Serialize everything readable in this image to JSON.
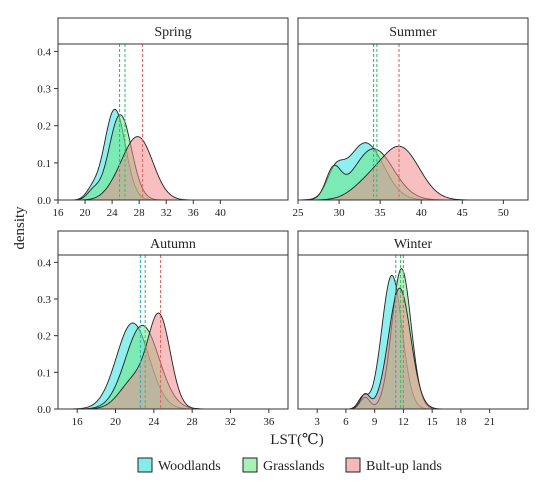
{
  "figure": {
    "ylabel": "density",
    "xlabel": "LST(℃)"
  },
  "legend": {
    "placement": "bottom",
    "items": [
      {
        "label": "Woodlands",
        "color": "#33e0e0"
      },
      {
        "label": "Grasslands",
        "color": "#6ee887"
      },
      {
        "label": "Bult-up lands",
        "color": "#f08a8a"
      }
    ]
  },
  "chart_data": [
    {
      "type": "area",
      "title": "Spring",
      "xlim": [
        16,
        50
      ],
      "ylim": [
        0,
        0.42
      ],
      "xticks": [
        16,
        20,
        24,
        28,
        32,
        36,
        40
      ],
      "yticks": [
        0.0,
        0.1,
        0.2,
        0.3,
        0.4
      ],
      "series": [
        {
          "name": "Woodlands",
          "components": [
            {
              "w": 0.05,
              "mu": 21.0,
              "sd": 0.9
            },
            {
              "w": 0.95,
              "mu": 24.4,
              "sd": 1.55
            }
          ],
          "mean": 25.1
        },
        {
          "name": "Grasslands",
          "components": [
            {
              "w": 0.05,
              "mu": 21.2,
              "sd": 0.9
            },
            {
              "w": 0.95,
              "mu": 25.2,
              "sd": 1.65
            }
          ],
          "mean": 25.9
        },
        {
          "name": "Bult-up lands",
          "components": [
            {
              "w": 0.15,
              "mu": 25.0,
              "sd": 1.8
            },
            {
              "w": 0.85,
              "mu": 28.0,
              "sd": 2.1
            }
          ],
          "mean": 28.5
        }
      ]
    },
    {
      "type": "area",
      "title": "Summer",
      "xlim": [
        25,
        53
      ],
      "ylim": [
        0,
        0.42
      ],
      "xticks": [
        25,
        30,
        35,
        40,
        45,
        50
      ],
      "yticks": [
        0.0,
        0.1,
        0.2,
        0.3,
        0.4
      ],
      "series": [
        {
          "name": "Woodlands",
          "components": [
            {
              "w": 0.15,
              "mu": 29.5,
              "sd": 1.0
            },
            {
              "w": 0.85,
              "mu": 33.2,
              "sd": 2.2
            }
          ],
          "mean": 34.2
        },
        {
          "name": "Grasslands",
          "components": [
            {
              "w": 0.17,
              "mu": 29.3,
              "sd": 0.9
            },
            {
              "w": 0.83,
              "mu": 34.2,
              "sd": 2.4
            }
          ],
          "mean": 34.6
        },
        {
          "name": "Bult-up lands",
          "components": [
            {
              "w": 0.2,
              "mu": 33.5,
              "sd": 2.0
            },
            {
              "w": 0.8,
              "mu": 37.5,
              "sd": 2.3
            }
          ],
          "mean": 37.3
        }
      ]
    },
    {
      "type": "area",
      "title": "Autumn",
      "xlim": [
        14,
        38
      ],
      "ylim": [
        0,
        0.42
      ],
      "xticks": [
        16,
        20,
        24,
        28,
        32,
        36
      ],
      "yticks": [
        0.0,
        0.1,
        0.2,
        0.3,
        0.4
      ],
      "series": [
        {
          "name": "Woodlands",
          "components": [
            {
              "w": 1.0,
              "mu": 21.8,
              "sd": 1.7
            }
          ],
          "mean": 22.6
        },
        {
          "name": "Grasslands",
          "components": [
            {
              "w": 1.0,
              "mu": 22.8,
              "sd": 1.75
            }
          ],
          "mean": 23.1
        },
        {
          "name": "Bult-up lands",
          "components": [
            {
              "w": 0.3,
              "mu": 22.0,
              "sd": 1.5
            },
            {
              "w": 0.7,
              "mu": 24.6,
              "sd": 1.15
            }
          ],
          "mean": 24.7
        }
      ]
    },
    {
      "type": "area",
      "title": "Winter",
      "xlim": [
        1,
        25
      ],
      "ylim": [
        0,
        0.42
      ],
      "xticks": [
        3,
        6,
        9,
        12,
        15,
        18,
        21
      ],
      "yticks": [
        0.0,
        0.1,
        0.2,
        0.3,
        0.4
      ],
      "series": [
        {
          "name": "Woodlands",
          "components": [
            {
              "w": 0.04,
              "mu": 7.8,
              "sd": 0.5
            },
            {
              "w": 0.96,
              "mu": 10.8,
              "sd": 1.05
            }
          ],
          "mean": 11.2
        },
        {
          "name": "Grasslands",
          "components": [
            {
              "w": 0.04,
              "mu": 8.0,
              "sd": 0.5
            },
            {
              "w": 0.96,
              "mu": 11.8,
              "sd": 1.0
            }
          ],
          "mean": 11.7
        },
        {
          "name": "Bult-up lands",
          "components": [
            {
              "w": 0.05,
              "mu": 8.0,
              "sd": 0.5
            },
            {
              "w": 0.95,
              "mu": 11.6,
              "sd": 1.15
            }
          ],
          "mean": 12.0
        }
      ]
    }
  ]
}
